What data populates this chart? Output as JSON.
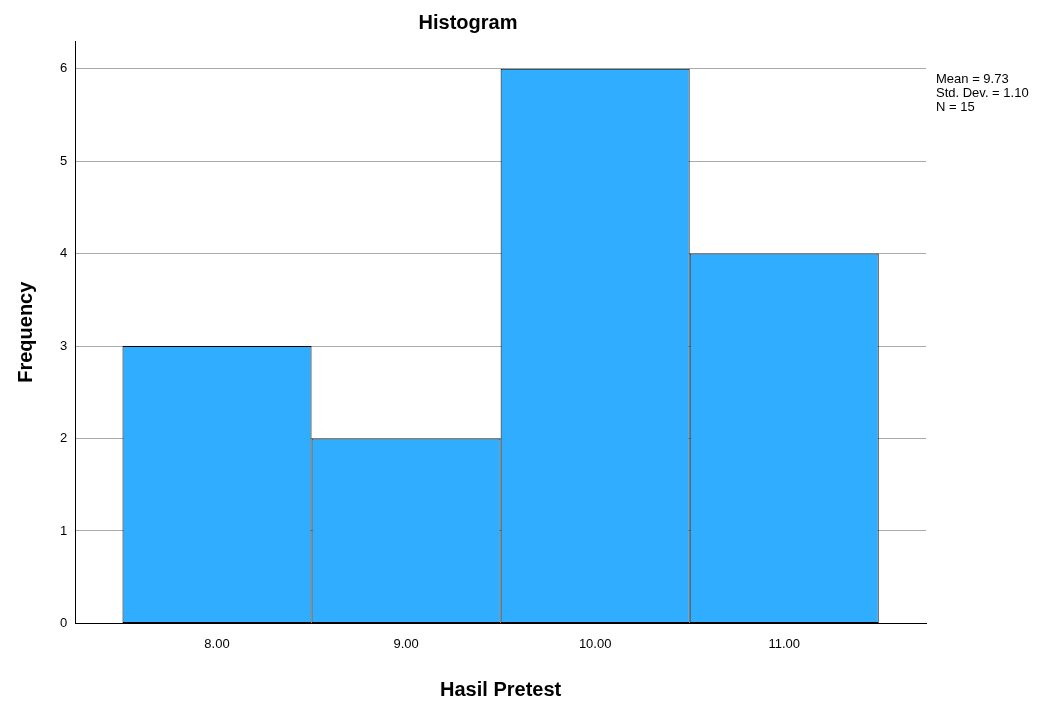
{
  "chart_data": {
    "type": "histogram",
    "title": "Histogram",
    "xlabel": "Hasil Pretest",
    "ylabel": "Frequency",
    "bins": [
      7.5,
      8.5,
      9.5,
      10.5,
      11.5
    ],
    "values": [
      3,
      2,
      6,
      4
    ],
    "color": "#31adff",
    "xlim": [
      7.25,
      11.75
    ],
    "xticks": [
      {
        "value": 8,
        "label": "8.00"
      },
      {
        "value": 9,
        "label": "9.00"
      },
      {
        "value": 10,
        "label": "10.00"
      },
      {
        "value": 11,
        "label": "11.00"
      }
    ],
    "ylim": [
      0,
      6.3
    ],
    "yticks": [
      0,
      1,
      2,
      3,
      4,
      5,
      6
    ],
    "grid": "y",
    "annotations": [
      "Mean = 9.73",
      "Std. Dev. = 1.10",
      "N = 15"
    ]
  }
}
